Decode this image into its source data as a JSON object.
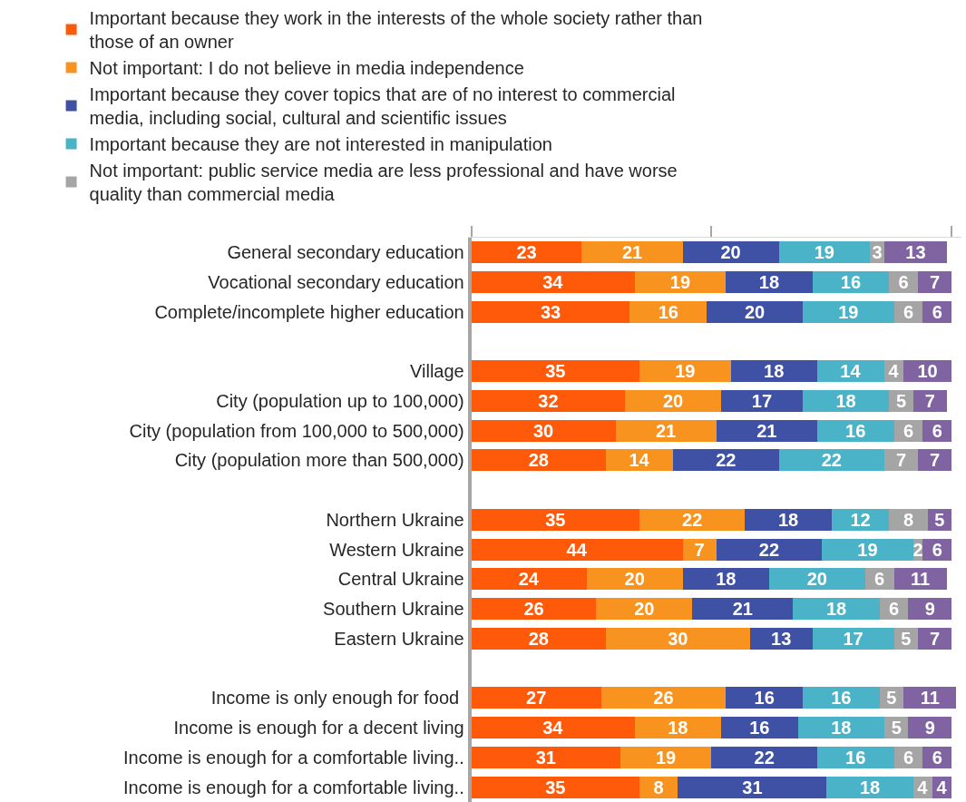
{
  "chart_data": {
    "type": "bar",
    "orientation": "horizontal",
    "stacked": true,
    "data_labels": true,
    "legend": "top left",
    "tick_labels": "y",
    "categories": [
      "General secondary education",
      "Vocational secondary education",
      "Complete/incomplete higher education",
      null,
      "Village",
      "City (population up to 100,000)",
      "City (population from 100,000 to 500,000)",
      "City (population more than 500,000)",
      null,
      "Northern Ukraine",
      "Western Ukraine",
      "Central Ukraine",
      "Southern Ukraine",
      "Eastern Ukraine",
      null,
      "Income is only enough for food ",
      "Income is enough for a decent living",
      "Income is enough for a comfortable living..",
      "Income is enough for a comfortable living.."
    ],
    "xlim": [
      0,
      102
    ],
    "xticks": [
      {
        "value": 0,
        "label": null
      },
      {
        "value": 50,
        "label": null
      },
      {
        "value": 100,
        "label": null
      }
    ],
    "series": [
      {
        "name": "Important because they work in the interests of the whole society rather than those of an owner",
        "color": "#ff5a0a",
        "values": [
          23,
          34,
          33,
          null,
          35,
          32,
          30,
          28,
          null,
          35,
          44,
          24,
          26,
          28,
          null,
          27,
          34,
          31,
          35
        ]
      },
      {
        "name": "Not important: I do not believe in media independence",
        "color": "#f7931e",
        "values": [
          21,
          19,
          16,
          null,
          19,
          20,
          21,
          14,
          null,
          22,
          7,
          20,
          20,
          30,
          null,
          26,
          18,
          19,
          8
        ]
      },
      {
        "name": "Important because they cover topics that are of no interest to commercial media, including social, cultural and scientific issues",
        "color": "#3f51a5",
        "values": [
          20,
          18,
          20,
          null,
          18,
          17,
          21,
          22,
          null,
          18,
          22,
          18,
          21,
          13,
          null,
          16,
          16,
          22,
          31
        ]
      },
      {
        "name": "Important because they are not interested in manipulation",
        "color": "#4bb3c8",
        "values": [
          19,
          16,
          19,
          null,
          14,
          18,
          16,
          22,
          null,
          12,
          19,
          20,
          18,
          17,
          null,
          16,
          18,
          16,
          18
        ]
      },
      {
        "name": "Not important: public service media are less professional and have worse quality than commercial media",
        "color": "#a5a5a5",
        "values": [
          3,
          6,
          6,
          null,
          4,
          5,
          6,
          7,
          null,
          8,
          2,
          6,
          6,
          5,
          null,
          5,
          5,
          6,
          4
        ]
      },
      {
        "color": "#8064a2",
        "values": [
          13,
          7,
          6,
          null,
          10,
          7,
          6,
          7,
          null,
          5,
          6,
          11,
          9,
          7,
          null,
          11,
          9,
          6,
          4
        ]
      }
    ]
  }
}
